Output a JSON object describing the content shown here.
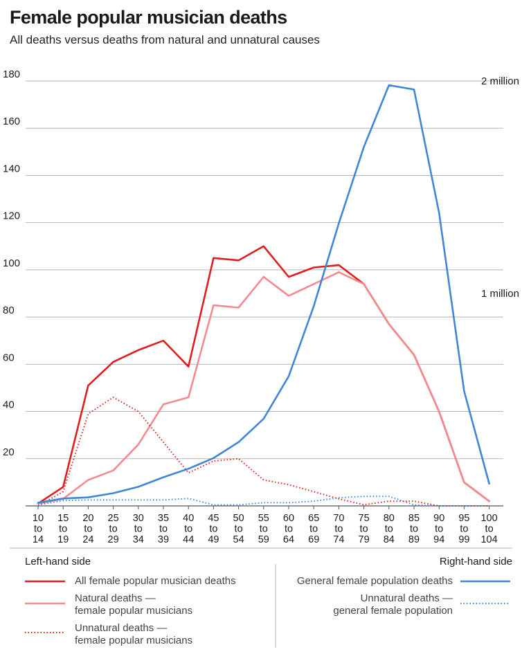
{
  "title": "Female popular musician deaths",
  "subtitle": "All deaths versus deaths from natural and unnatural causes",
  "legend": {
    "left_heading": "Left-hand side",
    "right_heading": "Right-hand side",
    "items": [
      {
        "lines": [
          "All female popular musician deaths"
        ],
        "color": "#e01e1e",
        "dash": "solid",
        "width": 2.6
      },
      {
        "lines": [
          "Natural deaths —",
          "female popular musicians"
        ],
        "color": "#f28b8f",
        "dash": "solid",
        "width": 2.6
      },
      {
        "lines": [
          "Unnatural deaths —",
          "female popular musicians"
        ],
        "color": "#e01e1e",
        "dash": "dotted",
        "width": 2
      },
      {
        "lines": [
          "General female population deaths"
        ],
        "color": "#3f86d8",
        "dash": "solid",
        "width": 2.6
      },
      {
        "lines": [
          "Unnatural deaths —",
          "general female population"
        ],
        "color": "#3f86d8",
        "dash": "dotted",
        "width": 2
      }
    ]
  },
  "chart_data": {
    "type": "line",
    "categories": [
      [
        "10",
        "to",
        "14"
      ],
      [
        "15",
        "to",
        "19"
      ],
      [
        "20",
        "to",
        "24"
      ],
      [
        "25",
        "to",
        "29"
      ],
      [
        "30",
        "to",
        "34"
      ],
      [
        "35",
        "to",
        "39"
      ],
      [
        "40",
        "to",
        "44"
      ],
      [
        "45",
        "to",
        "49"
      ],
      [
        "50",
        "to",
        "54"
      ],
      [
        "55",
        "to",
        "59"
      ],
      [
        "60",
        "to",
        "64"
      ],
      [
        "65",
        "to",
        "69"
      ],
      [
        "70",
        "to",
        "74"
      ],
      [
        "75",
        "to",
        "79"
      ],
      [
        "80",
        "to",
        "84"
      ],
      [
        "85",
        "to",
        "89"
      ],
      [
        "90",
        "to",
        "94"
      ],
      [
        "95",
        "to",
        "99"
      ],
      [
        "100",
        "to",
        "104"
      ]
    ],
    "y_left": {
      "ticks": [
        20,
        40,
        60,
        80,
        100,
        120,
        140,
        160,
        180
      ],
      "range": [
        0,
        180
      ]
    },
    "y_right": {
      "tick_labels": [
        {
          "label": "1 million",
          "value": 1000000
        },
        {
          "label": "2 million",
          "value": 2000000
        }
      ],
      "range": [
        0,
        2000000
      ]
    },
    "grid": true,
    "series": [
      {
        "name": "All female popular musician deaths",
        "axis": "left",
        "color": "#e01e1e",
        "dash": "solid",
        "values": [
          1,
          8,
          51,
          61,
          66,
          70,
          59,
          105,
          104,
          110,
          97,
          101,
          102,
          94,
          77,
          64,
          40,
          10,
          2
        ]
      },
      {
        "name": "Natural deaths — female popular musicians",
        "axis": "left",
        "color": "#f28b8f",
        "dash": "solid",
        "values": [
          1,
          3,
          11,
          15,
          26,
          43,
          46,
          85,
          84,
          97,
          89,
          94,
          99,
          94,
          77,
          64,
          40,
          10,
          2
        ]
      },
      {
        "name": "Unnatural deaths — female popular musicians",
        "axis": "left",
        "color": "#e01e1e",
        "dash": "dotted",
        "values": [
          0,
          6,
          39,
          46,
          40,
          27,
          14,
          19,
          20,
          11,
          9,
          6,
          3,
          0.5,
          2,
          2,
          0,
          0,
          0
        ]
      },
      {
        "name": "General female population deaths",
        "axis": "right",
        "color": "#3f86d8",
        "dash": "solid",
        "values": [
          15000,
          35000,
          40000,
          60000,
          90000,
          135000,
          175000,
          225000,
          300000,
          410000,
          610000,
          940000,
          1330000,
          1690000,
          1980000,
          1960000,
          1380000,
          540000,
          105000
        ]
      },
      {
        "name": "Unnatural deaths — general female population",
        "axis": "right",
        "color": "#3f86d8",
        "dash": "dotted",
        "values": [
          5000,
          25000,
          28000,
          28000,
          28000,
          28000,
          35000,
          5000,
          5000,
          15000,
          15000,
          22000,
          38000,
          45000,
          45000,
          5000,
          0,
          0,
          0
        ]
      }
    ]
  }
}
